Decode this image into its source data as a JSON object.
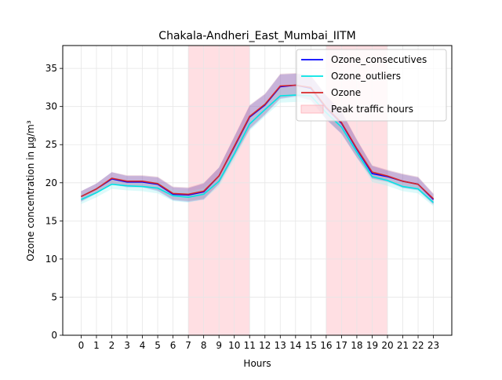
{
  "chart_data": {
    "type": "line",
    "title": "Chakala-Andheri_East_Mumbai_IITM",
    "xlabel": "Hours",
    "ylabel": "Ozone concentration in µg/m³",
    "x": [
      0,
      1,
      2,
      3,
      4,
      5,
      6,
      7,
      8,
      9,
      10,
      11,
      12,
      13,
      14,
      15,
      16,
      17,
      18,
      19,
      20,
      21,
      22,
      23
    ],
    "xlim": [
      -1.2,
      24.2
    ],
    "ylim": [
      0,
      38
    ],
    "yticks": [
      0,
      5,
      10,
      15,
      20,
      25,
      30,
      35
    ],
    "grid": true,
    "legend_position": "top-right",
    "series": [
      {
        "name": "Ozone_consecutives",
        "color": "#0000ff",
        "values": [
          18.2,
          19.2,
          20.5,
          20.1,
          20.1,
          19.8,
          18.5,
          18.4,
          18.8,
          20.9,
          24.7,
          28.6,
          30.2,
          32.6,
          32.8,
          32.4,
          29.8,
          27.8,
          24.4,
          21.2,
          20.8,
          20.2,
          19.8,
          17.8
        ],
        "band_low": [
          17.5,
          18.6,
          19.8,
          19.4,
          19.4,
          18.9,
          17.7,
          17.5,
          17.8,
          19.8,
          23.4,
          27.0,
          28.9,
          31.0,
          31.3,
          30.8,
          28.3,
          26.4,
          23.3,
          20.5,
          20.1,
          19.3,
          19.0,
          17.1
        ],
        "band_high": [
          18.9,
          19.9,
          21.4,
          20.9,
          20.9,
          20.7,
          19.4,
          19.3,
          19.9,
          22.0,
          26.0,
          30.1,
          31.6,
          34.2,
          34.3,
          34.0,
          31.4,
          29.3,
          25.6,
          22.2,
          21.6,
          21.1,
          20.7,
          18.5
        ]
      },
      {
        "name": "Ozone_outliers",
        "color": "#00e5e5",
        "values": [
          17.8,
          18.7,
          19.8,
          19.6,
          19.5,
          19.3,
          18.3,
          18.1,
          18.5,
          20.2,
          23.8,
          27.7,
          29.6,
          31.4,
          31.5,
          31.4,
          29.2,
          27.3,
          24.0,
          20.8,
          20.3,
          19.5,
          19.2,
          17.4
        ],
        "band_low": [
          17.2,
          18.1,
          19.2,
          19.0,
          18.9,
          18.6,
          17.6,
          17.4,
          17.8,
          19.5,
          23.0,
          26.8,
          28.7,
          30.5,
          30.6,
          30.5,
          28.4,
          26.5,
          23.3,
          20.1,
          19.6,
          18.9,
          18.6,
          16.9
        ],
        "band_high": [
          18.5,
          19.4,
          20.5,
          20.3,
          20.2,
          20.1,
          19.1,
          18.9,
          19.3,
          21.0,
          24.7,
          28.6,
          30.6,
          32.4,
          32.5,
          32.4,
          30.1,
          28.1,
          24.8,
          21.6,
          21.0,
          20.2,
          19.9,
          18.0
        ]
      },
      {
        "name": "Ozone",
        "color": "#d62728",
        "values": [
          18.2,
          19.2,
          20.6,
          20.2,
          20.2,
          19.9,
          18.6,
          18.5,
          18.9,
          20.9,
          24.8,
          28.7,
          30.3,
          32.7,
          32.8,
          32.5,
          29.9,
          27.9,
          24.5,
          21.4,
          20.9,
          20.2,
          19.8,
          17.9
        ],
        "band_low": [
          17.6,
          18.6,
          19.9,
          19.5,
          19.5,
          19.0,
          17.8,
          17.6,
          17.9,
          19.9,
          23.5,
          27.1,
          29.0,
          31.1,
          31.4,
          30.9,
          28.4,
          26.5,
          23.4,
          20.6,
          20.2,
          19.4,
          19.1,
          17.2
        ],
        "band_high": [
          18.9,
          19.9,
          21.4,
          21.0,
          21.0,
          20.8,
          19.5,
          19.4,
          20.0,
          22.0,
          26.1,
          30.2,
          31.7,
          34.3,
          34.4,
          34.1,
          31.5,
          29.4,
          25.7,
          22.3,
          21.7,
          21.2,
          20.8,
          18.6
        ]
      }
    ],
    "shaded_regions": [
      {
        "name": "Peak traffic hours",
        "from": 7,
        "to": 11,
        "color": "#ffc0c8"
      },
      {
        "name": "Peak traffic hours",
        "from": 16,
        "to": 20,
        "color": "#ffc0c8"
      }
    ],
    "legend": [
      "Ozone_consecutives",
      "Ozone_outliers",
      "Ozone",
      "Peak traffic hours"
    ]
  }
}
